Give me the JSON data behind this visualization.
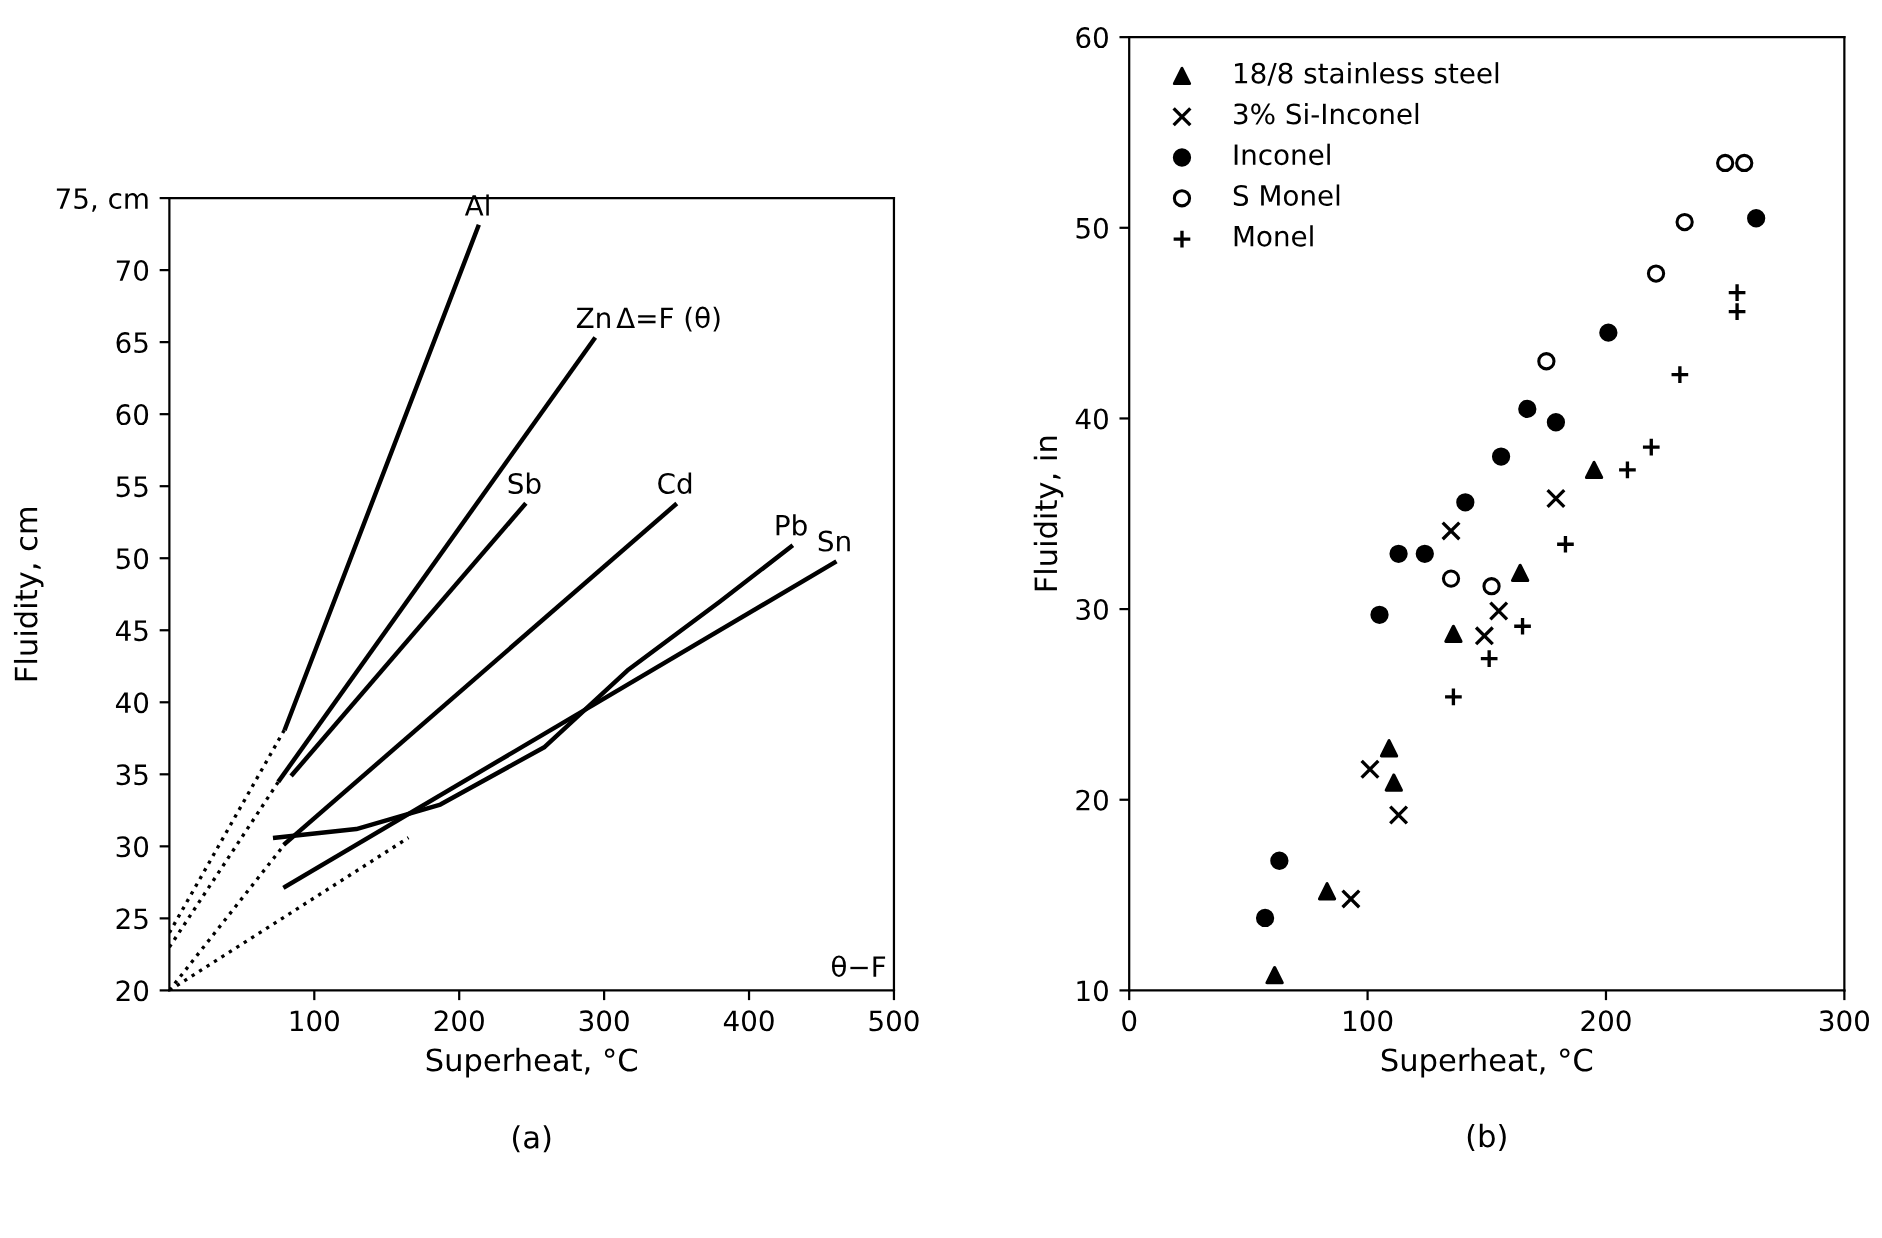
{
  "chart_data": [
    {
      "type": "line",
      "xlabel": "Superheat, °C",
      "ylabel": "Fluidity, cm",
      "xlim": [
        0,
        500
      ],
      "ylim": [
        20,
        75
      ],
      "xticks": [
        100,
        200,
        300,
        400,
        500
      ],
      "yticks": [
        20,
        25,
        30,
        35,
        40,
        45,
        50,
        55,
        60,
        65,
        70,
        {
          "value": 75,
          "label": "75, cm"
        }
      ],
      "grid": false,
      "marker": "none",
      "annotations": [
        {
          "text": "Δ=F (θ)",
          "x": 293,
          "y": 65.2
        },
        "θ−F",
        "(a)"
      ],
      "series": [
        {
          "name": "Al",
          "color": "#000000",
          "line_style": "solid",
          "x": [
            80,
            213
          ],
          "values": [
            38.2,
            73
          ]
        },
        {
          "name": "Zn",
          "color": "#000000",
          "line_style": "solid",
          "x": [
            76,
            293
          ],
          "values": [
            34.6,
            65.2
          ]
        },
        {
          "name": "Sb",
          "color": "#000000",
          "line_style": "solid",
          "x": [
            85,
            245
          ],
          "values": [
            35,
            53.7
          ]
        },
        {
          "name": "Cd",
          "color": "#000000",
          "line_style": "solid",
          "x": [
            80,
            349
          ],
          "values": [
            30.2,
            53.7
          ]
        },
        {
          "name": "Pb",
          "color": "#000000",
          "line_style": "solid",
          "x": [
            73,
            129,
            187,
            259,
            316,
            380,
            429
          ],
          "values": [
            30.6,
            31.2,
            32.9,
            36.9,
            42.2,
            47,
            50.8
          ]
        },
        {
          "name": "Sn",
          "color": "#000000",
          "line_style": "solid",
          "x": [
            80,
            459
          ],
          "values": [
            27.2,
            49.7
          ]
        },
        {
          "color": "#000000",
          "line_style": "dotted",
          "x": [
            0,
            80
          ],
          "values": [
            24,
            38.2
          ]
        },
        {
          "color": "#000000",
          "line_style": "dotted",
          "x": [
            0,
            76
          ],
          "values": [
            23,
            34.6
          ]
        },
        {
          "color": "#000000",
          "line_style": "dotted",
          "x": [
            0,
            80
          ],
          "values": [
            20,
            30.2
          ]
        },
        {
          "color": "#000000",
          "line_style": "dotted",
          "x": [
            0,
            165
          ],
          "values": [
            20,
            30.6
          ]
        }
      ]
    },
    {
      "type": "scatter",
      "xlabel": "Superheat, °C",
      "ylabel": "Fluidity, in",
      "xlim": [
        0,
        300
      ],
      "ylim": [
        10,
        60
      ],
      "xticks": [
        0,
        100,
        200,
        300
      ],
      "yticks": [
        10,
        20,
        30,
        40,
        50,
        60
      ],
      "grid": false,
      "legend": "top left",
      "annotations": [
        "(b)"
      ],
      "series": [
        {
          "name": "18/8 stainless steel",
          "color": "#000000",
          "marker": "triangle",
          "x": [
            61,
            83,
            109,
            111,
            136,
            164,
            195
          ],
          "values": [
            10.8,
            15.2,
            22.7,
            20.9,
            28.7,
            31.9,
            37.3
          ]
        },
        {
          "name": "3% Si-Inconel",
          "color": "#000000",
          "marker": "x",
          "x": [
            93,
            101,
            113,
            135,
            149,
            155,
            179
          ],
          "values": [
            14.8,
            21.6,
            19.2,
            34.1,
            28.6,
            29.9,
            35.8
          ]
        },
        {
          "name": "Inconel",
          "color": "#000000",
          "marker": "circle",
          "x": [
            57,
            63,
            105,
            113,
            124,
            141,
            156,
            167,
            179,
            201,
            263
          ],
          "values": [
            13.8,
            16.8,
            29.7,
            32.9,
            32.9,
            35.6,
            38,
            40.5,
            39.8,
            44.5,
            50.5
          ]
        },
        {
          "name": "S Monel",
          "color": "#000000",
          "marker": "circle-open",
          "x": [
            135,
            152,
            175,
            221,
            233,
            250,
            258
          ],
          "values": [
            31.6,
            31.2,
            43,
            47.6,
            50.3,
            53.4,
            53.4
          ]
        },
        {
          "name": "Monel",
          "color": "#000000",
          "marker": "cross",
          "x": [
            136,
            151,
            165,
            183,
            209,
            219,
            231,
            255,
            255
          ],
          "values": [
            25.4,
            27.4,
            29.1,
            33.4,
            37.3,
            38.5,
            42.3,
            45.6,
            46.6
          ]
        }
      ]
    }
  ]
}
